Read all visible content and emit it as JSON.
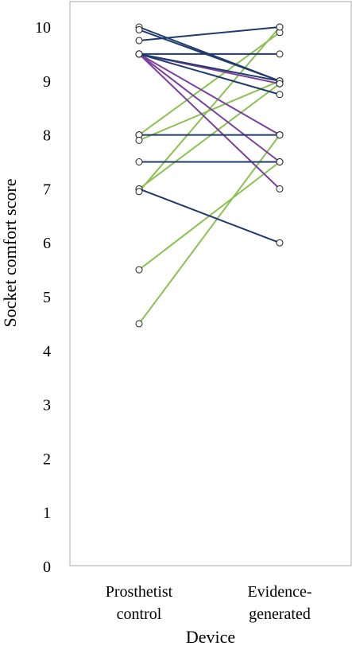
{
  "chart_data": {
    "type": "line",
    "title": "",
    "xlabel": "Device",
    "ylabel": "Socket comfort score",
    "categories": [
      [
        "Prosthetist",
        "control"
      ],
      [
        "Evidence-",
        "generated"
      ]
    ],
    "ylim": [
      0,
      10
    ],
    "yticks": [
      "0",
      "1",
      "2",
      "3",
      "4",
      "5",
      "6",
      "7",
      "8",
      "9",
      "10"
    ],
    "grid": false,
    "legend": "none",
    "colors": {
      "navy": "#1f3a6b",
      "purple": "#7b3fa0",
      "green": "#8cc152",
      "frame": "#a8a8a8",
      "marker": "#222222"
    },
    "series": [
      {
        "color_key": "navy",
        "values": [
          10.0,
          9.0
        ]
      },
      {
        "color_key": "navy",
        "values": [
          9.95,
          9.0
        ]
      },
      {
        "color_key": "navy",
        "values": [
          9.75,
          10.0
        ]
      },
      {
        "color_key": "navy",
        "values": [
          9.5,
          9.5
        ]
      },
      {
        "color_key": "navy",
        "values": [
          9.5,
          9.0
        ]
      },
      {
        "color_key": "navy",
        "values": [
          9.5,
          8.75
        ]
      },
      {
        "color_key": "navy",
        "values": [
          8.0,
          8.0
        ]
      },
      {
        "color_key": "navy",
        "values": [
          7.5,
          7.5
        ]
      },
      {
        "color_key": "navy",
        "values": [
          7.0,
          6.0
        ]
      },
      {
        "color_key": "purple",
        "values": [
          9.5,
          8.0
        ]
      },
      {
        "color_key": "purple",
        "values": [
          9.5,
          7.5
        ]
      },
      {
        "color_key": "purple",
        "values": [
          9.5,
          7.0
        ]
      },
      {
        "color_key": "purple",
        "values": [
          9.5,
          8.95
        ]
      },
      {
        "color_key": "green",
        "values": [
          8.0,
          9.9
        ]
      },
      {
        "color_key": "green",
        "values": [
          7.9,
          9.0
        ]
      },
      {
        "color_key": "green",
        "values": [
          7.0,
          8.95
        ]
      },
      {
        "color_key": "green",
        "values": [
          6.95,
          10.0
        ]
      },
      {
        "color_key": "green",
        "values": [
          5.5,
          7.5
        ]
      },
      {
        "color_key": "green",
        "values": [
          4.5,
          8.0
        ]
      }
    ]
  }
}
